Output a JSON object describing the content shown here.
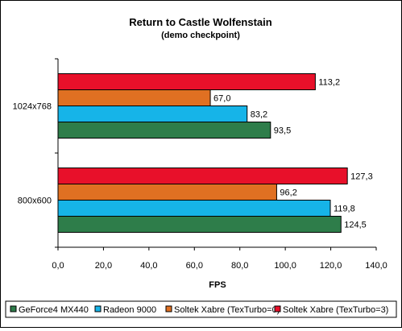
{
  "chart_data": {
    "type": "bar",
    "orientation": "horizontal",
    "title": "Return to Castle Wolfenstain",
    "subtitle": "(demo checkpoint)",
    "xlabel": "FPS",
    "ylabel": "",
    "xlim": [
      0,
      140
    ],
    "x_ticks": [
      "0,0",
      "20,0",
      "40,0",
      "60,0",
      "80,0",
      "100,0",
      "120,0",
      "140,0"
    ],
    "x_tick_values": [
      0,
      20,
      40,
      60,
      80,
      100,
      120,
      140
    ],
    "categories": [
      "1024x768",
      "800x600"
    ],
    "series": [
      {
        "name": "GeForce4 MX440",
        "color": "#2e7d4a",
        "values": [
          93.5,
          124.5
        ],
        "labels": [
          "93,5",
          "124,5"
        ]
      },
      {
        "name": "Radeon 9000",
        "color": "#16b4e8",
        "values": [
          83.2,
          119.8
        ],
        "labels": [
          "83,2",
          "119,8"
        ]
      },
      {
        "name": "Soltek Xabre (TexTurbo=0)",
        "color": "#e07022",
        "values": [
          67.0,
          96.2
        ],
        "labels": [
          "67,0",
          "96,2"
        ]
      },
      {
        "name": "Soltek Xabre (TexTurbo=3)",
        "color": "#e8102a",
        "values": [
          113.2,
          127.3
        ],
        "labels": [
          "113,2",
          "127,3"
        ]
      }
    ],
    "grid": false,
    "legend_position": "bottom"
  }
}
